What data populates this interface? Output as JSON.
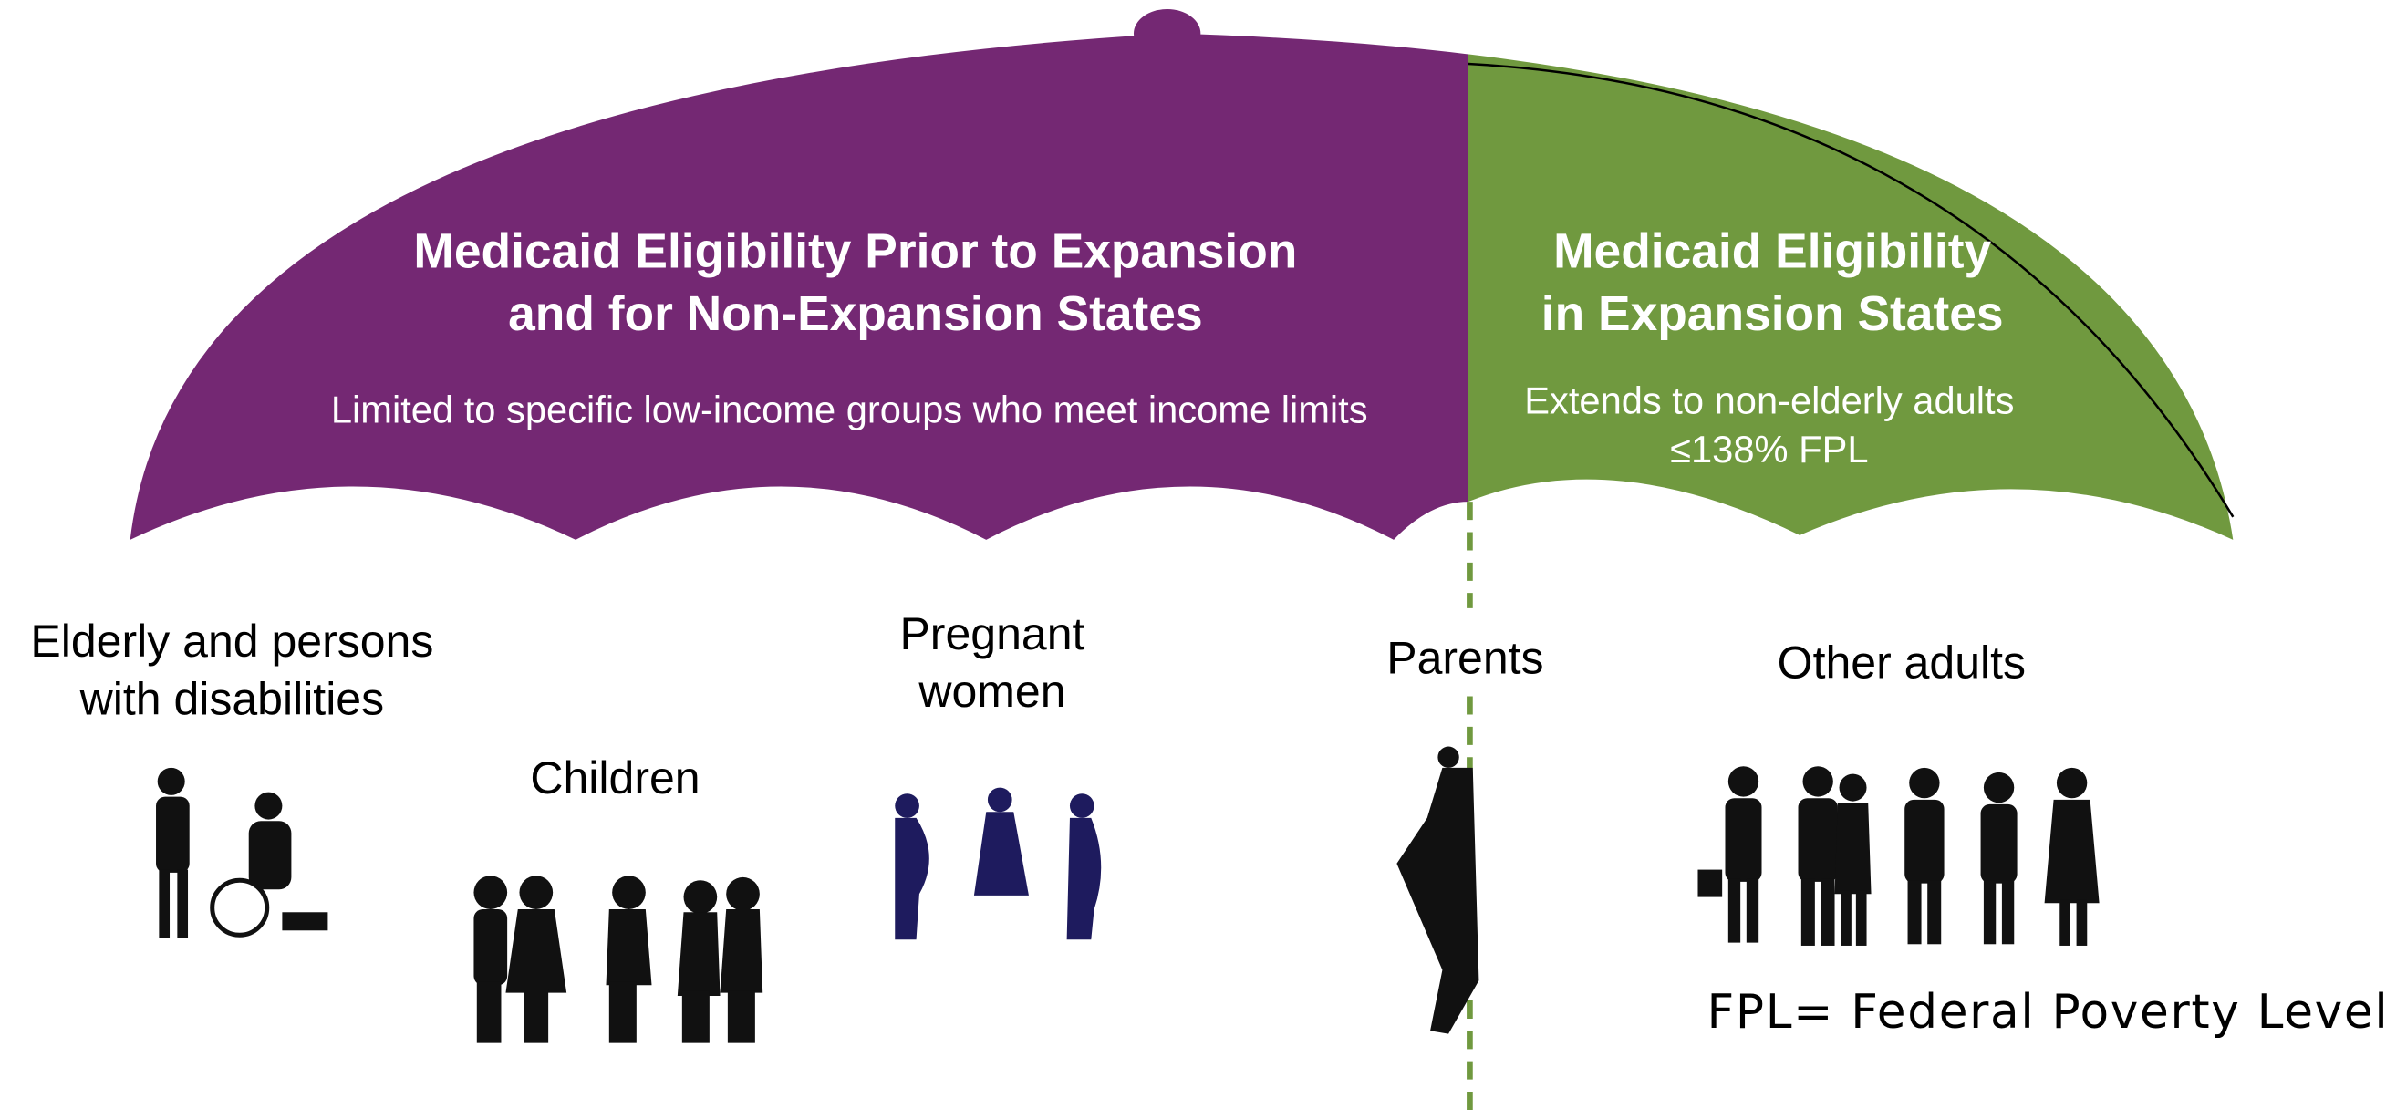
{
  "left_panel": {
    "title": [
      "Medicaid Eligibility Prior to Expansion",
      "and for Non-Expansion States"
    ],
    "subtitle": [
      "Limited to specific low-income groups who meet  income limits"
    ]
  },
  "right_panel": {
    "title": [
      "Medicaid Eligibility",
      "in Expansion States"
    ],
    "subtitle": [
      "Extends to non-elderly adults",
      "≤138% FPL"
    ]
  },
  "groups": [
    {
      "label": [
        "Elderly and persons",
        "with disabilities"
      ]
    },
    {
      "label": [
        "Children"
      ]
    },
    {
      "label": [
        "Pregnant",
        "women"
      ]
    },
    {
      "label": [
        "Parents"
      ]
    },
    {
      "label": [
        "Other adults"
      ]
    }
  ],
  "footnote": "FPL= Federal Poverty Level"
}
